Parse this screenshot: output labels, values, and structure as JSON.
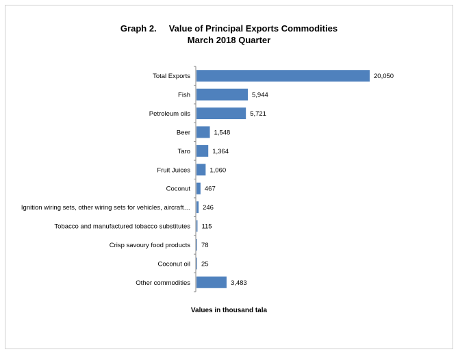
{
  "chart_data": {
    "type": "bar",
    "orientation": "horizontal",
    "title_line1": "Graph 2.     Value of Principal Exports Commodities",
    "title_line2": "March 2018 Quarter",
    "xlabel": "Values in thousand tala",
    "categories": [
      "Total Exports",
      "Fish",
      "Petroleum oils",
      "Beer",
      "Taro",
      "Fruit Juices",
      "Coconut",
      "Ignition wiring sets, other wiring sets for vehicles, aircraft…",
      "Tobacco and manufactured tobacco substitutes",
      "Crisp savoury food products",
      "Coconut oil",
      "Other commodities"
    ],
    "values": [
      20050,
      5944,
      5721,
      1548,
      1364,
      1060,
      467,
      246,
      115,
      78,
      25,
      3483
    ],
    "data_labels": [
      "20,050",
      "5,944",
      "5,721",
      "1,548",
      "1,364",
      "1,060",
      "467",
      "246",
      "115",
      "78",
      "25",
      "3,483"
    ],
    "bar_color": "#4f81bd",
    "grid": false,
    "legend": "none"
  }
}
